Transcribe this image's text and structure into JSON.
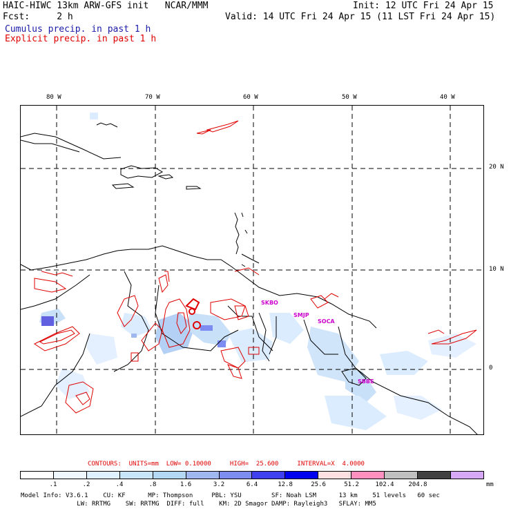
{
  "header": {
    "model_line": "HAIC-HIWC 13km ARW-GFS init   NCAR/MMM",
    "fcst_line": "Fcst:     2 h",
    "init_line": "Init: 12 UTC Fri 24 Apr 15",
    "valid_line": "Valid: 14 UTC Fri 24 Apr 15 (11 LST Fri 24 Apr 15)",
    "field1": "Cumulus precip. in past 1 h",
    "field2": "Explicit precip. in past 1 h"
  },
  "map": {
    "lon_labels": [
      "80 W",
      "70 W",
      "60 W",
      "50 W",
      "40 W"
    ],
    "lat_labels": [
      "20 N",
      "10 N",
      "0"
    ],
    "stations": [
      "SKBO",
      "SMJP",
      "SOCA",
      "SBBE"
    ],
    "colors": {
      "coast": "#000000",
      "grid": "#000000",
      "explicit_contour": "#e00000",
      "station": "#cc00cc"
    }
  },
  "contours": {
    "info": "CONTOURS:  UNITS=mm  LOW= 0.10000     HIGH=  25.600     INTERVAL=X  4.0000"
  },
  "legend": {
    "colors": [
      "#ffffff",
      "#f0f8ff",
      "#dff0ff",
      "#c8e6f8",
      "#b4d8f4",
      "#a0b8f0",
      "#7c8cf0",
      "#4040f0",
      "#0000f0",
      "#ffe0e0",
      "#ff90c0",
      "#c0c0c0",
      "#404040",
      "#d8a8f8"
    ],
    "ticks": [
      ".1",
      ".2",
      ".4",
      ".8",
      "1.6",
      "3.2",
      "6.4",
      "12.8",
      "25.6",
      "51.2",
      "102.4",
      "204.8"
    ],
    "unit": "mm"
  },
  "footer": {
    "line1": "Model Info: V3.6.1    CU: KF      MP: Thompson     PBL: YSU        SF: Noah LSM      13 km    51 levels   60 sec",
    "line2": "               LW: RRTMG    SW: RRTMG  DIFF: full    KM: 2D Smagor DAMP: Rayleigh3   SFLAY: MM5"
  }
}
